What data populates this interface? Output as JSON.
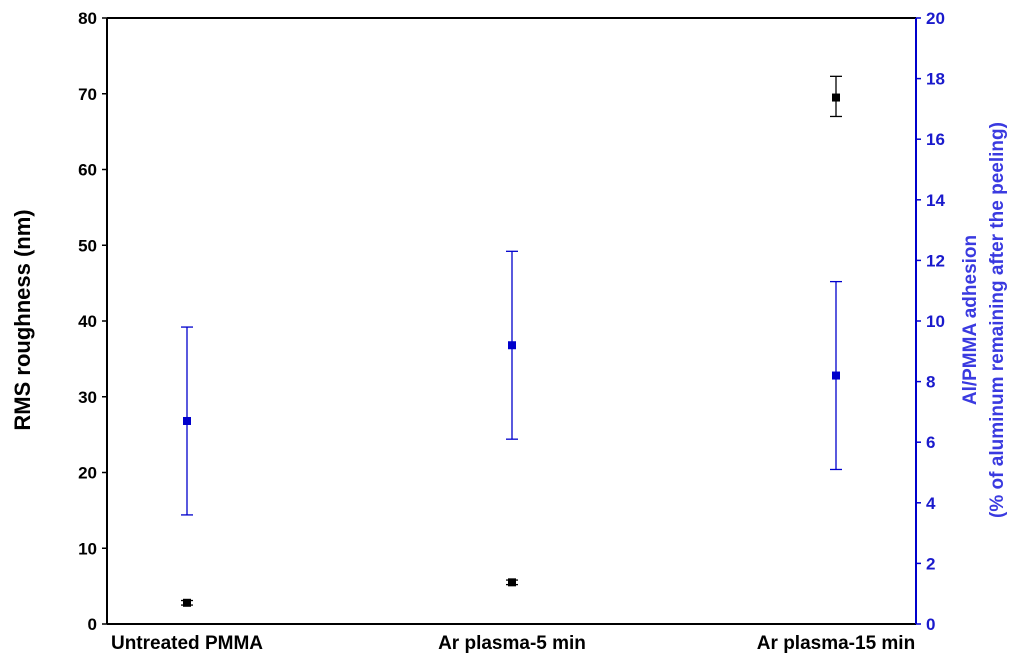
{
  "chart_data": {
    "type": "scatter",
    "title": "",
    "categories": [
      "Untreated PMMA",
      "Ar plasma-5 min",
      "Ar plasma-15 min"
    ],
    "y_left": {
      "label": "RMS roughness (nm)",
      "range": [
        0,
        80
      ],
      "ticks": [
        0,
        10,
        20,
        30,
        40,
        50,
        60,
        70,
        80
      ]
    },
    "y_right": {
      "label_line1": "Al/PMMA adhesion",
      "label_line2": "(% of aluminum remaining after the peeling)",
      "range": [
        0,
        20
      ],
      "ticks": [
        0,
        2,
        4,
        6,
        8,
        10,
        12,
        14,
        16,
        18,
        20
      ]
    },
    "series": [
      {
        "axis": "left",
        "color": "#000000",
        "values": [
          2.8,
          5.5,
          69.5
        ],
        "err_low": [
          2.5,
          5.2,
          67.0
        ],
        "err_high": [
          3.1,
          5.8,
          72.3
        ]
      },
      {
        "axis": "right",
        "color": "#0000cc",
        "values": [
          6.7,
          9.2,
          8.2
        ],
        "err_low": [
          3.6,
          6.1,
          5.1
        ],
        "err_high": [
          9.8,
          12.3,
          11.3
        ]
      }
    ],
    "grid": false,
    "legend": "none"
  }
}
